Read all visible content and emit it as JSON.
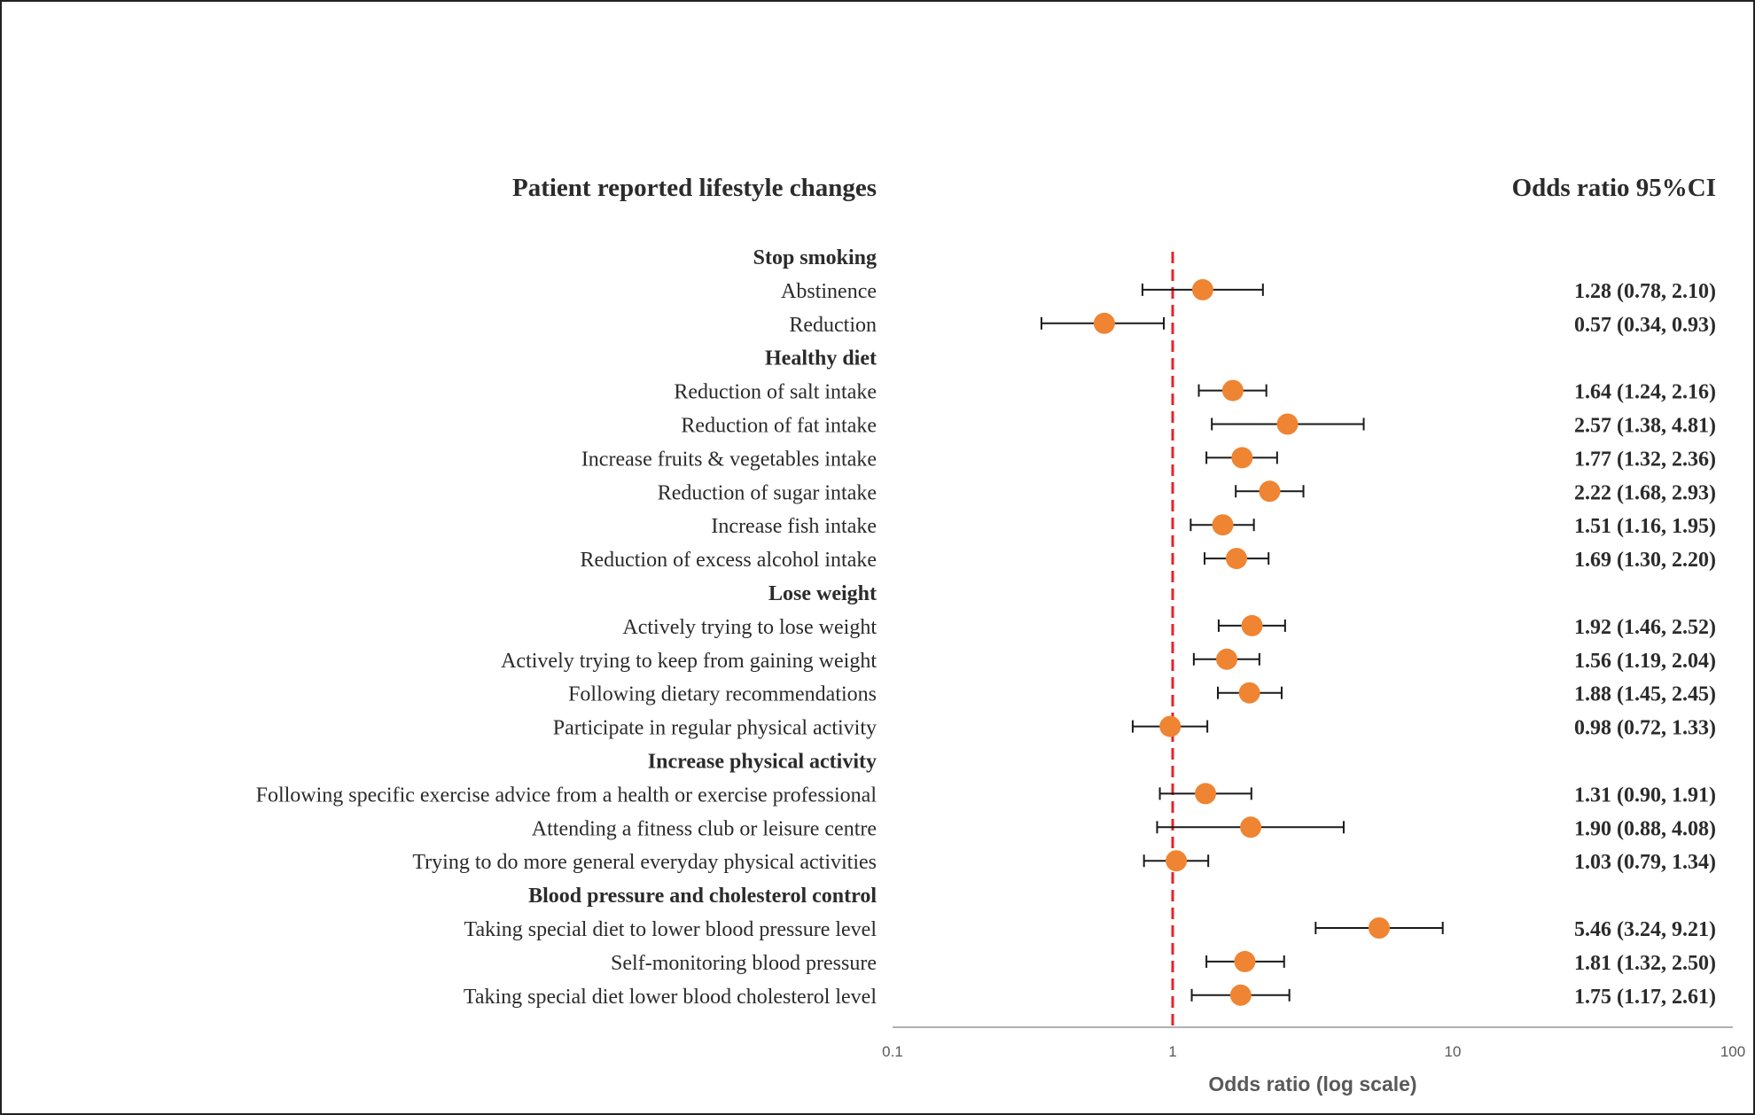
{
  "chart_data": {
    "type": "forest",
    "left_header": "Patient reported lifestyle changes",
    "right_header": "Odds ratio 95%CI",
    "xlabel": "Odds ratio (log scale)",
    "xscale": "log",
    "xlim": [
      0.1,
      100
    ],
    "xticks": [
      {
        "value": 0.1,
        "label": "0.1"
      },
      {
        "value": 1,
        "label": "1"
      },
      {
        "value": 10,
        "label": "10"
      },
      {
        "value": 100,
        "label": "100"
      }
    ],
    "reference_line": {
      "value": 1,
      "style": "dashed",
      "color": "#e8222a"
    },
    "colors": {
      "point": "#ef8432",
      "whisker": "#1a1a1a",
      "axis": "#b0b0b0",
      "text": "#2b2b2b"
    },
    "rows": [
      {
        "kind": "header",
        "label": "Stop smoking"
      },
      {
        "kind": "item",
        "label": "Abstinence",
        "or": 1.28,
        "lower": 0.78,
        "upper": 2.1,
        "ci_text": "1.28 (0.78, 2.10)"
      },
      {
        "kind": "item",
        "label": "Reduction",
        "or": 0.57,
        "lower": 0.34,
        "upper": 0.93,
        "ci_text": "0.57 (0.34, 0.93)"
      },
      {
        "kind": "header",
        "label": "Healthy diet"
      },
      {
        "kind": "item",
        "label": "Reduction of salt intake",
        "or": 1.64,
        "lower": 1.24,
        "upper": 2.16,
        "ci_text": "1.64 (1.24, 2.16)"
      },
      {
        "kind": "item",
        "label": "Reduction of fat intake",
        "or": 2.57,
        "lower": 1.38,
        "upper": 4.81,
        "ci_text": "2.57 (1.38, 4.81)"
      },
      {
        "kind": "item",
        "label": "Increase fruits & vegetables intake",
        "or": 1.77,
        "lower": 1.32,
        "upper": 2.36,
        "ci_text": "1.77 (1.32, 2.36)"
      },
      {
        "kind": "item",
        "label": "Reduction of sugar intake",
        "or": 2.22,
        "lower": 1.68,
        "upper": 2.93,
        "ci_text": "2.22 (1.68, 2.93)"
      },
      {
        "kind": "item",
        "label": "Increase fish intake",
        "or": 1.51,
        "lower": 1.16,
        "upper": 1.95,
        "ci_text": "1.51 (1.16, 1.95)"
      },
      {
        "kind": "item",
        "label": "Reduction of excess alcohol intake",
        "or": 1.69,
        "lower": 1.3,
        "upper": 2.2,
        "ci_text": "1.69 (1.30, 2.20)"
      },
      {
        "kind": "header",
        "label": "Lose weight"
      },
      {
        "kind": "item",
        "label": "Actively trying to lose weight",
        "or": 1.92,
        "lower": 1.46,
        "upper": 2.52,
        "ci_text": "1.92 (1.46, 2.52)"
      },
      {
        "kind": "item",
        "label": "Actively trying to keep from gaining weight",
        "or": 1.56,
        "lower": 1.19,
        "upper": 2.04,
        "ci_text": "1.56 (1.19, 2.04)"
      },
      {
        "kind": "item",
        "label": "Following dietary recommendations",
        "or": 1.88,
        "lower": 1.45,
        "upper": 2.45,
        "ci_text": "1.88 (1.45, 2.45)"
      },
      {
        "kind": "item",
        "label": "Participate in regular physical activity",
        "or": 0.98,
        "lower": 0.72,
        "upper": 1.33,
        "ci_text": "0.98 (0.72, 1.33)"
      },
      {
        "kind": "header",
        "label": "Increase physical activity"
      },
      {
        "kind": "item",
        "label": "Following specific exercise advice from a health or exercise professional",
        "or": 1.31,
        "lower": 0.9,
        "upper": 1.91,
        "ci_text": "1.31 (0.90, 1.91)"
      },
      {
        "kind": "item",
        "label": "Attending a fitness club or leisure centre",
        "or": 1.9,
        "lower": 0.88,
        "upper": 4.08,
        "ci_text": "1.90 (0.88, 4.08)"
      },
      {
        "kind": "item",
        "label": "Trying to do more general everyday physical activities",
        "or": 1.03,
        "lower": 0.79,
        "upper": 1.34,
        "ci_text": "1.03 (0.79, 1.34)"
      },
      {
        "kind": "header",
        "label": "Blood pressure and cholesterol control"
      },
      {
        "kind": "item",
        "label": "Taking special diet to lower blood pressure level",
        "or": 5.46,
        "lower": 3.24,
        "upper": 9.21,
        "ci_text": "5.46 (3.24, 9.21)"
      },
      {
        "kind": "item",
        "label": "Self-monitoring blood pressure",
        "or": 1.81,
        "lower": 1.32,
        "upper": 2.5,
        "ci_text": "1.81 (1.32, 2.50)"
      },
      {
        "kind": "item",
        "label": "Taking special diet lower blood cholesterol level",
        "or": 1.75,
        "lower": 1.17,
        "upper": 2.61,
        "ci_text": "1.75 (1.17, 2.61)"
      }
    ]
  }
}
